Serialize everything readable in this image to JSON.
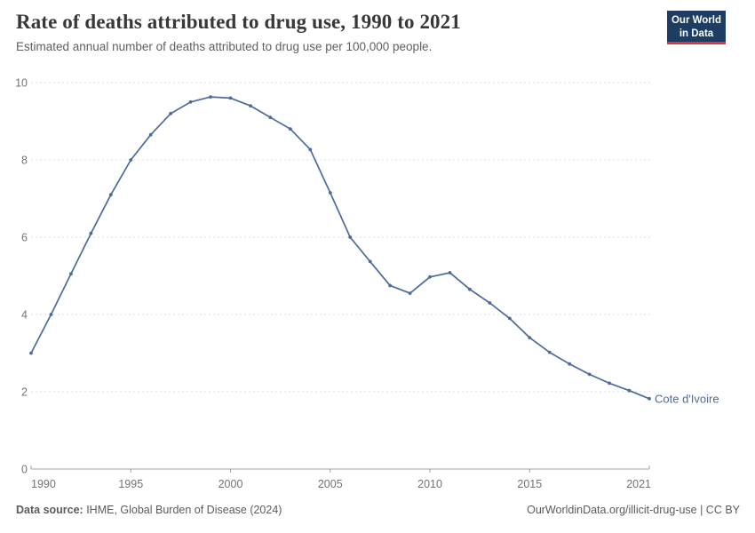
{
  "header": {
    "title": "Rate of deaths attributed to drug use, 1990 to 2021",
    "subtitle": "Estimated annual number of deaths attributed to drug use per 100,000 people.",
    "logo": {
      "line1": "Our World",
      "line2": "in Data",
      "bg_color": "#1d3d63",
      "accent_color": "#e0373f"
    }
  },
  "chart_data": {
    "type": "line",
    "title": "Rate of deaths attributed to drug use, 1990 to 2021",
    "subtitle": "Estimated annual number of deaths attributed to drug use per 100,000 people.",
    "xlabel": "",
    "ylabel": "",
    "x": [
      1990,
      1991,
      1992,
      1993,
      1994,
      1995,
      1996,
      1997,
      1998,
      1999,
      2000,
      2001,
      2002,
      2003,
      2004,
      2005,
      2006,
      2007,
      2008,
      2009,
      2010,
      2011,
      2012,
      2013,
      2014,
      2015,
      2016,
      2017,
      2018,
      2019,
      2020,
      2021
    ],
    "series": [
      {
        "name": "Cote d'Ivoire",
        "color": "#4C6A9C",
        "values": [
          3.0,
          4.0,
          5.05,
          6.1,
          7.1,
          8.0,
          8.65,
          9.2,
          9.5,
          9.63,
          9.6,
          9.4,
          9.1,
          8.8,
          8.27,
          7.15,
          6.0,
          5.37,
          4.75,
          4.55,
          4.97,
          5.08,
          4.65,
          4.3,
          3.9,
          3.4,
          3.02,
          2.72,
          2.45,
          2.22,
          2.03,
          1.82
        ]
      }
    ],
    "xlim": [
      1990,
      2021
    ],
    "ylim": [
      0,
      10
    ],
    "xticks": [
      1990,
      1995,
      2000,
      2005,
      2010,
      2015,
      2021
    ],
    "yticks": [
      0,
      2,
      4,
      6,
      8,
      10
    ],
    "grid": "horizontal-dashed",
    "legend_position": "end-of-line-label",
    "end_label": "Cote d'Ivoire"
  },
  "footer": {
    "data_source_label": "Data source:",
    "data_source_value": " IHME, Global Burden of Disease (2024)",
    "attribution": "OurWorldinData.org/illicit-drug-use | CC BY"
  },
  "colors": {
    "series": "#4C6A9C",
    "grid": "#dcdcdc",
    "axis": "#a1a1a1",
    "tick_label": "#737373",
    "title": "#383838",
    "subtitle": "#5f5f5f"
  }
}
